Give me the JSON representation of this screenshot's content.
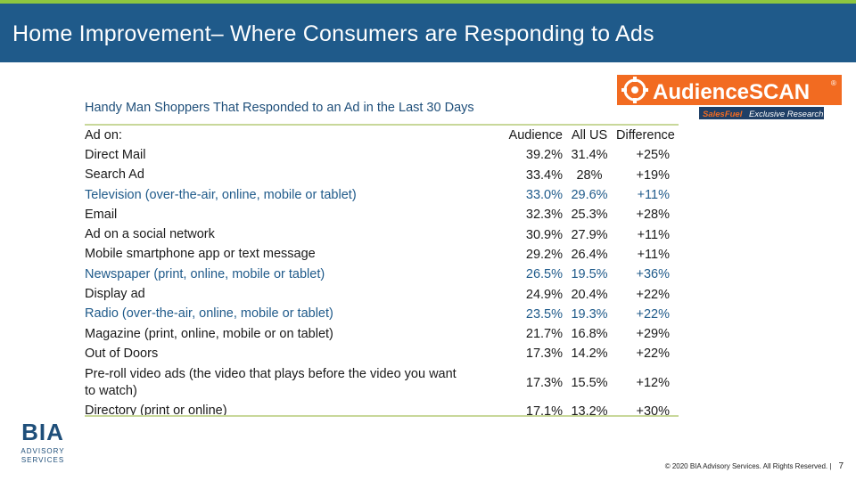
{
  "header": {
    "title": "Home Improvement– Where Consumers are Responding to Ads"
  },
  "subtitle": "Handy Man Shoppers That Responded to an Ad in the Last 30 Days",
  "table": {
    "headers": {
      "label": "Ad on:",
      "audience": "Audience",
      "all_us": "All US",
      "difference": "Difference"
    },
    "rows": [
      {
        "label": "Direct Mail",
        "audience": "39.2%",
        "all_us": "31.4%",
        "difference": "+25%",
        "accent": false
      },
      {
        "label": "Search Ad",
        "audience": "33.4%",
        "all_us": "28%",
        "difference": "+19%",
        "accent": false
      },
      {
        "label": "Television (over-the-air, online, mobile or tablet)",
        "audience": "33.0%",
        "all_us": "29.6%",
        "difference": "+11%",
        "accent": true
      },
      {
        "label": "Email",
        "audience": "32.3%",
        "all_us": "25.3%",
        "difference": "+28%",
        "accent": false
      },
      {
        "label": "Ad on a social network",
        "audience": "30.9%",
        "all_us": "27.9%",
        "difference": "+11%",
        "accent": false
      },
      {
        "label": "Mobile smartphone app or text message",
        "audience": "29.2%",
        "all_us": "26.4%",
        "difference": "+11%",
        "accent": false
      },
      {
        "label": "Newspaper (print, online, mobile or tablet)",
        "audience": "26.5%",
        "all_us": "19.5%",
        "difference": "+36%",
        "accent": true
      },
      {
        "label": "Display ad",
        "audience": "24.9%",
        "all_us": "20.4%",
        "difference": "+22%",
        "accent": false
      },
      {
        "label": "Radio (over-the-air, online, mobile or tablet)",
        "audience": "23.5%",
        "all_us": "19.3%",
        "difference": "+22%",
        "accent": true
      },
      {
        "label": "Magazine (print, online, mobile or on tablet)",
        "audience": "21.7%",
        "all_us": "16.8%",
        "difference": "+29%",
        "accent": false
      },
      {
        "label": "Out of Doors",
        "audience": "17.3%",
        "all_us": "14.2%",
        "difference": "+22%",
        "accent": false
      },
      {
        "label": "Pre-roll video ads (the video that plays before the video you want to watch)",
        "audience": "17.3%",
        "all_us": "15.5%",
        "difference": "+12%",
        "accent": false
      },
      {
        "label": "Directory (print or online)",
        "audience": "17.1%",
        "all_us": "13.2%",
        "difference": "+30%",
        "accent": false
      }
    ]
  },
  "logos": {
    "audiencescan": {
      "wordmark": "AudienceSCAN",
      "registered": "®",
      "tagline_brand": "SalesFuel",
      "tagline": "Exclusive Research"
    },
    "bia": {
      "wordmark": "BIA",
      "line1": "ADVISORY",
      "line2": "SERVICES"
    }
  },
  "footer": {
    "copyright": "© 2020 BIA Advisory Services. All Rights Reserved. |",
    "page_number": "7"
  },
  "colors": {
    "title_bar": "#1f5a8a",
    "top_rule": "#8dc63f",
    "accent_text": "#1f5a8a",
    "table_rule": "#c8d89a",
    "logo_orange": "#f26b21"
  }
}
